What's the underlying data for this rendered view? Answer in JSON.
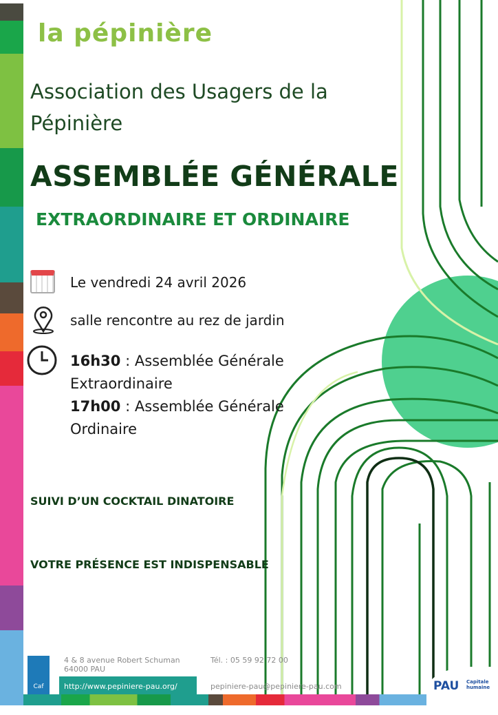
{
  "logo": {
    "text": "la pépinière"
  },
  "header": {
    "association": "Association des Usagers de la Pépinière",
    "title": "ASSEMBLÉE GÉNÉRALE",
    "subtitle": "EXTRAORDINAIRE ET ORDINAIRE"
  },
  "details": {
    "date": "Le vendredi 24 avril 2026",
    "location": "salle rencontre au rez de jardin",
    "schedule": [
      {
        "time": "16h30",
        "label": " : Assemblée Générale",
        "label2": "Extraordinaire"
      },
      {
        "time": "17h00",
        "label": " : Assemblée Générale",
        "label2": " Ordinaire"
      }
    ]
  },
  "notes": {
    "cocktail": "SUIVI D’UN COCKTAIL DINATOIRE",
    "presence": "VOTRE PRÉSENCE EST INDISPENSABLE"
  },
  "footer": {
    "address1": "4 & 8 avenue Robert Schuman",
    "address2": "64000 PAU",
    "website": "http://www.pepiniere-pau.org/",
    "phone": "Tél. : 05 59 92 72 00",
    "email": "pepiniere-pau@pepiniere-pau.com",
    "caf": "Caf",
    "pau": "PAU",
    "pau_tag": "Capitale humaine"
  },
  "colors": {
    "dark_green": "#123c18",
    "accent_green": "#1a8a3c",
    "circle": "#4fd08f",
    "logo_green": "#8dc046"
  }
}
